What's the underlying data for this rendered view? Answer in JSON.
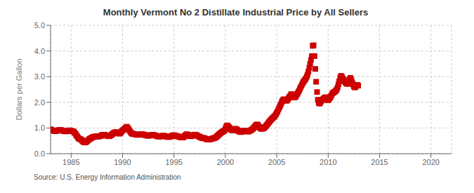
{
  "chart_data": {
    "type": "scatter",
    "title": "Monthly Vermont No 2 Distillate Industrial Price by All Sellers",
    "y_label": "Dollars per Gallon",
    "annotation": "Source: U.S. Energy Information Administration",
    "color": "#cc0000",
    "marker": "square",
    "grid": true,
    "xlim": [
      1983,
      2022
    ],
    "xticks": [
      1985,
      1990,
      1995,
      2000,
      2005,
      2010,
      2015,
      2020
    ],
    "ylim": [
      0.0,
      5.0
    ],
    "yticks": [
      {
        "value": 0.0,
        "label": "0.0"
      },
      {
        "value": 1.0,
        "label": "1.0"
      },
      {
        "value": 2.0,
        "label": "2.0"
      },
      {
        "value": 3.0,
        "label": "3.0"
      },
      {
        "value": 4.0,
        "label": "4.0"
      },
      {
        "value": 5.0,
        "label": "5.0"
      }
    ],
    "x": [
      1983.0,
      1983.08,
      1983.17,
      1983.25,
      1983.33,
      1983.42,
      1983.5,
      1983.58,
      1983.67,
      1983.75,
      1983.83,
      1983.92,
      1984.0,
      1984.08,
      1984.17,
      1984.25,
      1984.33,
      1984.42,
      1984.5,
      1984.58,
      1984.67,
      1984.75,
      1984.83,
      1984.92,
      1985.0,
      1985.08,
      1985.17,
      1985.25,
      1985.33,
      1985.42,
      1985.5,
      1985.58,
      1985.67,
      1985.75,
      1985.83,
      1985.92,
      1986.0,
      1986.08,
      1986.17,
      1986.25,
      1986.33,
      1986.42,
      1986.5,
      1986.58,
      1986.67,
      1986.75,
      1986.83,
      1986.92,
      1987.0,
      1987.08,
      1987.17,
      1987.25,
      1987.33,
      1987.42,
      1987.5,
      1987.58,
      1987.67,
      1987.75,
      1987.83,
      1987.92,
      1988.0,
      1988.08,
      1988.17,
      1988.25,
      1988.33,
      1988.42,
      1988.5,
      1988.58,
      1988.67,
      1988.75,
      1988.83,
      1988.92,
      1989.0,
      1989.08,
      1989.17,
      1989.25,
      1989.33,
      1989.42,
      1989.5,
      1989.58,
      1989.67,
      1989.75,
      1989.83,
      1989.92,
      1990.0,
      1990.08,
      1990.17,
      1990.25,
      1990.33,
      1990.42,
      1990.5,
      1990.58,
      1990.67,
      1990.75,
      1990.83,
      1990.92,
      1991.0,
      1991.08,
      1991.17,
      1991.25,
      1991.33,
      1991.42,
      1991.5,
      1991.58,
      1991.67,
      1991.75,
      1991.83,
      1991.92,
      1992.0,
      1992.08,
      1992.17,
      1992.25,
      1992.33,
      1992.42,
      1992.5,
      1992.58,
      1992.67,
      1992.75,
      1992.83,
      1992.92,
      1993.0,
      1993.08,
      1993.17,
      1993.25,
      1993.33,
      1993.42,
      1993.5,
      1993.58,
      1993.67,
      1993.75,
      1993.83,
      1993.92,
      1994.0,
      1994.08,
      1994.17,
      1994.25,
      1994.33,
      1994.42,
      1994.5,
      1994.58,
      1994.67,
      1994.75,
      1994.83,
      1994.92,
      1995.0,
      1995.08,
      1995.17,
      1995.25,
      1995.33,
      1995.42,
      1995.5,
      1995.58,
      1995.67,
      1995.75,
      1995.83,
      1995.92,
      1996.0,
      1996.08,
      1996.17,
      1996.25,
      1996.33,
      1996.42,
      1996.5,
      1996.58,
      1996.67,
      1996.75,
      1996.83,
      1996.92,
      1997.0,
      1997.08,
      1997.17,
      1997.25,
      1997.33,
      1997.42,
      1997.5,
      1997.58,
      1997.67,
      1997.75,
      1997.83,
      1997.92,
      1998.0,
      1998.08,
      1998.17,
      1998.25,
      1998.33,
      1998.42,
      1998.5,
      1998.58,
      1998.67,
      1998.75,
      1998.83,
      1998.92,
      1999.0,
      1999.08,
      1999.17,
      1999.25,
      1999.33,
      1999.42,
      1999.5,
      1999.58,
      1999.67,
      1999.75,
      1999.83,
      1999.92,
      2000.0,
      2000.08,
      2000.17,
      2000.25,
      2000.33,
      2000.42,
      2000.5,
      2000.58,
      2000.67,
      2000.75,
      2000.83,
      2000.92,
      2001.0,
      2001.08,
      2001.17,
      2001.25,
      2001.33,
      2001.42,
      2001.5,
      2001.58,
      2001.67,
      2001.75,
      2001.83,
      2001.92,
      2002.0,
      2002.08,
      2002.17,
      2002.25,
      2002.33,
      2002.42,
      2002.5,
      2002.58,
      2002.67,
      2002.75,
      2002.83,
      2002.92,
      2003.0,
      2003.08,
      2003.17,
      2003.25,
      2003.33,
      2003.42,
      2003.5,
      2003.58,
      2003.67,
      2003.75,
      2003.83,
      2003.92,
      2004.0,
      2004.08,
      2004.17,
      2004.25,
      2004.33,
      2004.42,
      2004.5,
      2004.58,
      2004.67,
      2004.75,
      2004.83,
      2004.92,
      2005.0,
      2005.08,
      2005.17,
      2005.25,
      2005.33,
      2005.42,
      2005.5,
      2005.58,
      2005.67,
      2005.75,
      2005.83,
      2005.92,
      2006.0,
      2006.08,
      2006.17,
      2006.25,
      2006.33,
      2006.42,
      2006.5,
      2006.58,
      2006.67,
      2006.75,
      2006.83,
      2006.92,
      2007.0,
      2007.08,
      2007.17,
      2007.25,
      2007.33,
      2007.42,
      2007.5,
      2007.58,
      2007.67,
      2007.75,
      2007.83,
      2007.92,
      2008.0,
      2008.08,
      2008.17,
      2008.25,
      2008.33,
      2008.42,
      2008.5,
      2008.58,
      2008.67,
      2008.75,
      2008.83,
      2008.92,
      2009.0,
      2009.08,
      2009.17,
      2009.25,
      2009.33,
      2009.42,
      2009.5,
      2009.58,
      2009.67,
      2009.75,
      2009.83,
      2009.92,
      2010.0,
      2010.08,
      2010.17,
      2010.25,
      2010.33,
      2010.42,
      2010.5,
      2010.58,
      2010.67,
      2010.75,
      2010.83,
      2010.92,
      2011.0,
      2011.08,
      2011.17,
      2011.25,
      2011.33,
      2011.42,
      2011.5,
      2011.58,
      2011.67,
      2011.75,
      2011.83,
      2011.92,
      2012.0,
      2012.08,
      2012.17,
      2012.25,
      2012.33,
      2012.42,
      2012.5,
      2012.58,
      2012.67,
      2012.75,
      2012.83,
      2012.92
    ],
    "values": [
      0.95,
      0.93,
      0.91,
      0.9,
      0.89,
      0.88,
      0.88,
      0.89,
      0.9,
      0.91,
      0.92,
      0.93,
      0.92,
      0.91,
      0.9,
      0.89,
      0.88,
      0.87,
      0.87,
      0.88,
      0.89,
      0.9,
      0.91,
      0.9,
      0.89,
      0.88,
      0.87,
      0.86,
      0.82,
      0.78,
      0.72,
      0.68,
      0.63,
      0.59,
      0.57,
      0.56,
      0.55,
      0.5,
      0.47,
      0.45,
      0.44,
      0.45,
      0.47,
      0.5,
      0.53,
      0.56,
      0.58,
      0.6,
      0.62,
      0.64,
      0.65,
      0.66,
      0.67,
      0.67,
      0.67,
      0.67,
      0.67,
      0.68,
      0.69,
      0.7,
      0.72,
      0.73,
      0.74,
      0.73,
      0.72,
      0.71,
      0.7,
      0.69,
      0.68,
      0.69,
      0.71,
      0.73,
      0.76,
      0.79,
      0.81,
      0.83,
      0.84,
      0.83,
      0.81,
      0.79,
      0.78,
      0.79,
      0.82,
      0.87,
      0.9,
      0.93,
      0.96,
      0.98,
      1.02,
      1.05,
      1.0,
      0.96,
      0.91,
      0.86,
      0.81,
      0.78,
      0.78,
      0.77,
      0.76,
      0.75,
      0.75,
      0.74,
      0.73,
      0.74,
      0.74,
      0.75,
      0.76,
      0.76,
      0.75,
      0.74,
      0.73,
      0.72,
      0.71,
      0.7,
      0.7,
      0.7,
      0.71,
      0.72,
      0.73,
      0.74,
      0.73,
      0.72,
      0.71,
      0.7,
      0.69,
      0.68,
      0.67,
      0.67,
      0.67,
      0.68,
      0.69,
      0.7,
      0.7,
      0.69,
      0.68,
      0.67,
      0.66,
      0.65,
      0.65,
      0.66,
      0.67,
      0.68,
      0.7,
      0.72,
      0.72,
      0.71,
      0.7,
      0.69,
      0.68,
      0.67,
      0.66,
      0.65,
      0.64,
      0.63,
      0.63,
      0.64,
      0.67,
      0.71,
      0.74,
      0.76,
      0.74,
      0.72,
      0.7,
      0.68,
      0.68,
      0.69,
      0.71,
      0.73,
      0.74,
      0.74,
      0.73,
      0.71,
      0.69,
      0.67,
      0.66,
      0.64,
      0.62,
      0.61,
      0.61,
      0.61,
      0.6,
      0.58,
      0.57,
      0.56,
      0.55,
      0.55,
      0.56,
      0.57,
      0.58,
      0.59,
      0.6,
      0.61,
      0.62,
      0.64,
      0.67,
      0.7,
      0.73,
      0.76,
      0.79,
      0.82,
      0.84,
      0.86,
      0.88,
      0.9,
      0.96,
      1.05,
      1.1,
      1.08,
      1.04,
      1.0,
      0.96,
      0.93,
      0.91,
      0.91,
      0.93,
      0.96,
      0.97,
      0.95,
      0.92,
      0.89,
      0.87,
      0.85,
      0.84,
      0.85,
      0.87,
      0.89,
      0.9,
      0.89,
      0.88,
      0.87,
      0.86,
      0.87,
      0.88,
      0.9,
      0.92,
      0.94,
      0.97,
      1.0,
      1.04,
      1.08,
      1.12,
      1.14,
      1.12,
      1.07,
      1.02,
      0.99,
      0.97,
      0.97,
      0.98,
      1.0,
      1.03,
      1.06,
      1.1,
      1.14,
      1.19,
      1.23,
      1.27,
      1.31,
      1.35,
      1.38,
      1.41,
      1.44,
      1.48,
      1.53,
      1.59,
      1.65,
      1.73,
      1.8,
      1.87,
      1.94,
      2.02,
      2.08,
      2.12,
      2.1,
      2.08,
      2.06,
      2.07,
      2.12,
      2.17,
      2.22,
      2.27,
      2.32,
      2.28,
      2.23,
      2.2,
      2.19,
      2.22,
      2.28,
      2.33,
      2.39,
      2.45,
      2.52,
      2.59,
      2.66,
      2.73,
      2.79,
      2.84,
      2.88,
      2.93,
      3.0,
      3.08,
      3.2,
      3.35,
      3.5,
      3.65,
      3.8,
      4.2,
      4.22,
      3.8,
      3.3,
      2.8,
      2.4,
      2.1,
      1.98,
      1.95,
      2.0,
      2.05,
      2.1,
      2.12,
      2.15,
      2.18,
      2.2,
      2.15,
      2.1,
      2.08,
      2.12,
      2.17,
      2.22,
      2.28,
      2.35,
      2.38,
      2.4,
      2.42,
      2.45,
      2.5,
      2.58,
      2.7,
      2.82,
      2.95,
      3.03,
      3.0,
      2.93,
      2.88,
      2.83,
      2.78,
      2.74,
      2.72,
      2.72,
      2.8,
      2.9,
      2.95,
      2.88,
      2.78,
      2.7,
      2.62,
      2.58,
      2.6,
      2.65,
      2.68,
      2.65
    ]
  }
}
